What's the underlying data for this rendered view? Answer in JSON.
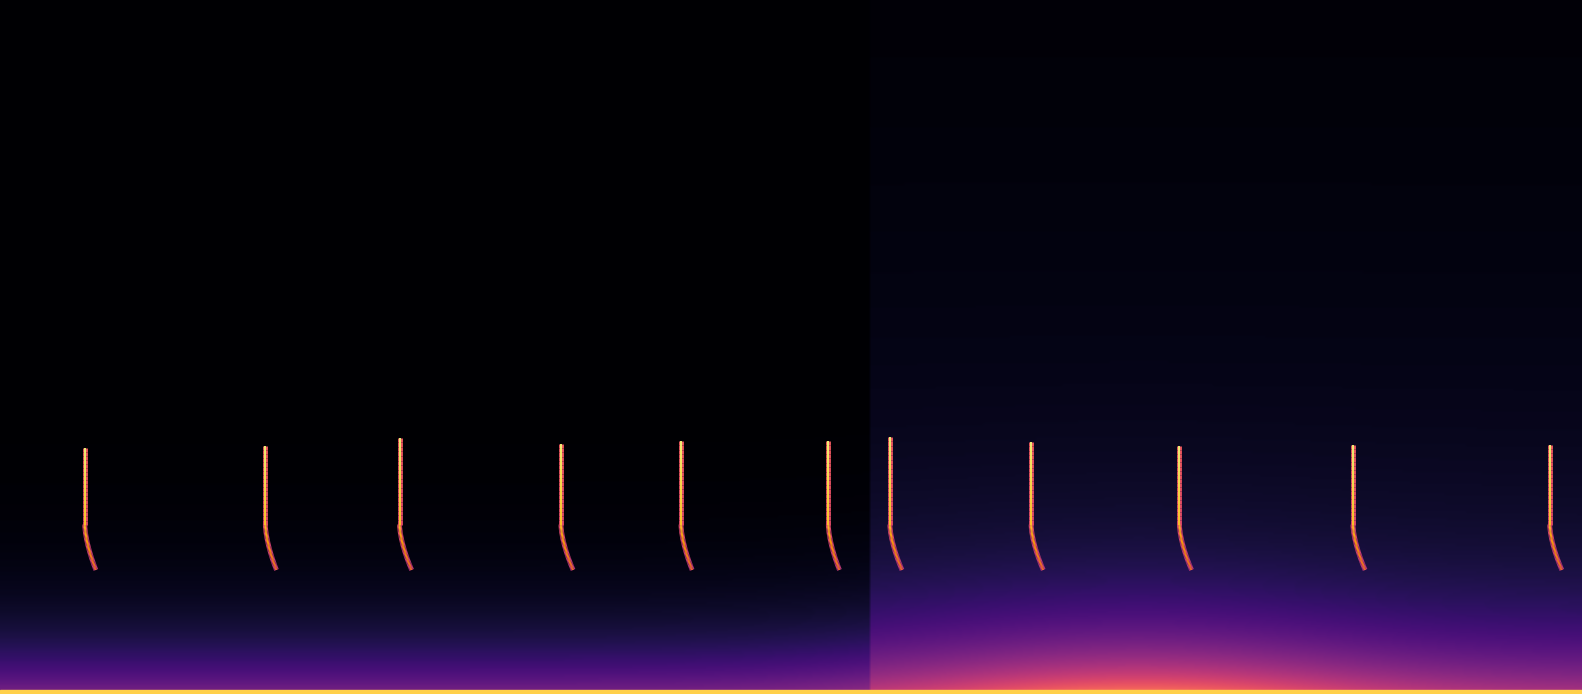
{
  "chart_data": {
    "type": "spectrogram",
    "tick_labels": false,
    "xlim": [
      0,
      1568
    ],
    "ylim": [
      0,
      688
    ],
    "calls": {
      "x": [
        84,
        263,
        396,
        556,
        675,
        821,
        882,
        1022,
        1169,
        1341,
        1536
      ],
      "top": [
        244,
        246,
        254,
        248,
        251,
        251,
        255,
        250,
        246,
        247,
        247
      ],
      "knee": [
        168,
        168,
        168,
        168,
        168,
        168,
        168,
        168,
        168,
        168,
        168
      ],
      "end_x": [
        95,
        274,
        408,
        568,
        686,
        832,
        894,
        1034,
        1181,
        1353,
        1548
      ],
      "bottom": [
        123,
        123,
        123,
        123,
        123,
        123,
        123,
        123,
        123,
        123,
        123
      ]
    }
  }
}
